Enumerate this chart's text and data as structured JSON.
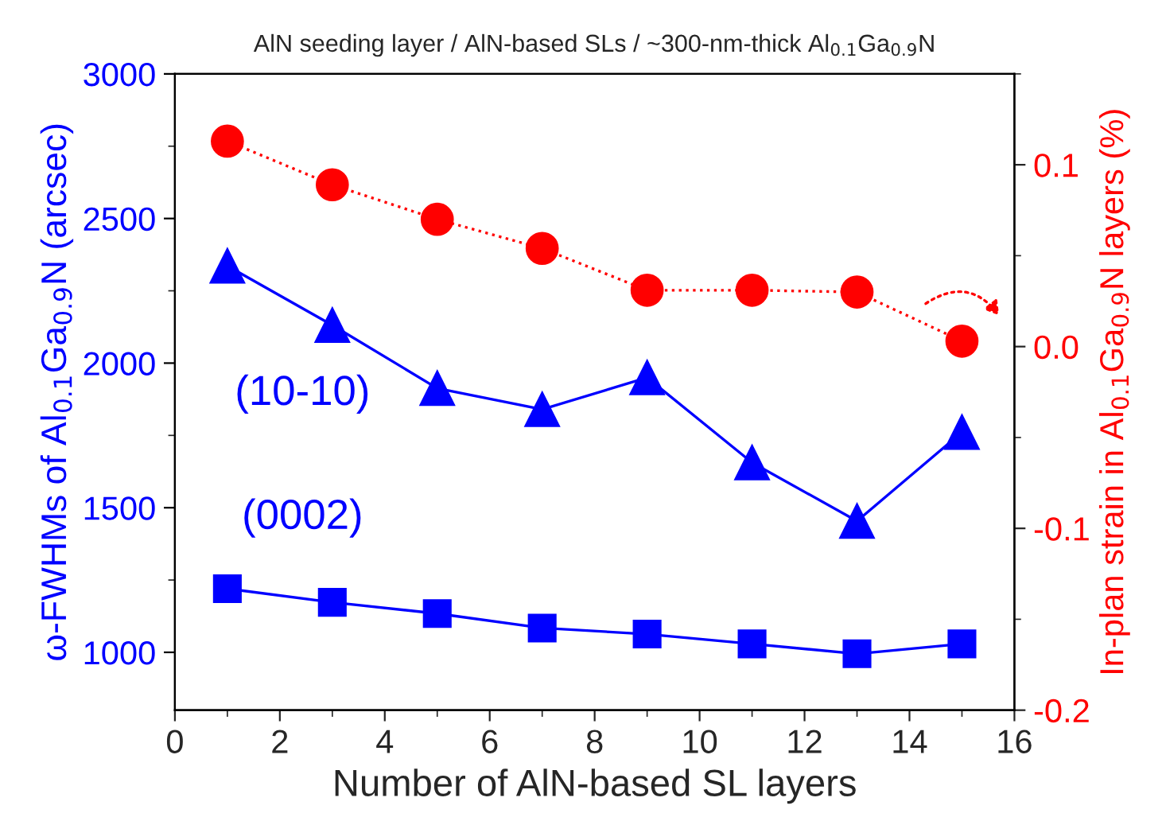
{
  "chart_data": {
    "type": "line",
    "title": "AlN seeding layer / AlN-based SLs / ~300-nm-thick Al$_{0.1}$Ga$_{0.9}$N",
    "xlabel": "Number of AlN-based SL layers",
    "ylabel": "ω-FWHMs of Al$_{0.1}$Ga$_{0.9}$N (arcsec)",
    "y2label": "In-plan strain in Al$_{0.1}$Ga$_{0.9}$N layers (%)",
    "x": [
      1,
      3,
      5,
      7,
      9,
      11,
      13,
      15
    ],
    "series": [
      {
        "name": "(10-10)",
        "color": "#0000ff",
        "marker": "triangle",
        "line_style": "solid",
        "values": [
          2336,
          2131,
          1913,
          1840,
          1950,
          1656,
          1454,
          1761
        ]
      },
      {
        "name": "(0002)",
        "color": "#0000ff",
        "marker": "square",
        "line_style": "solid",
        "values": [
          1220,
          1173,
          1134,
          1084,
          1063,
          1029,
          995,
          1029
        ]
      },
      {
        "color": "#ff0000",
        "marker": "circle",
        "line_style": "dotted",
        "axis": "y2",
        "values": [
          0.113,
          0.089,
          0.07,
          0.054,
          0.031,
          0.031,
          0.03,
          0.003
        ]
      }
    ],
    "xlim": [
      0,
      16
    ],
    "xticks": [
      0,
      2,
      4,
      6,
      8,
      10,
      12,
      14,
      16
    ],
    "ylim": [
      800,
      3000
    ],
    "yticks": [
      1000,
      1500,
      2000,
      2500,
      3000
    ],
    "y2lim": [
      -0.2,
      0.15
    ],
    "y2ticks": [
      {
        "value": -0.2,
        "label": "-0.2"
      },
      {
        "value": -0.1,
        "label": "-0.1"
      },
      {
        "value": 0.0,
        "label": "0.0"
      },
      {
        "value": 0.1,
        "label": "0.1"
      }
    ],
    "grid": false,
    "legend": false
  }
}
